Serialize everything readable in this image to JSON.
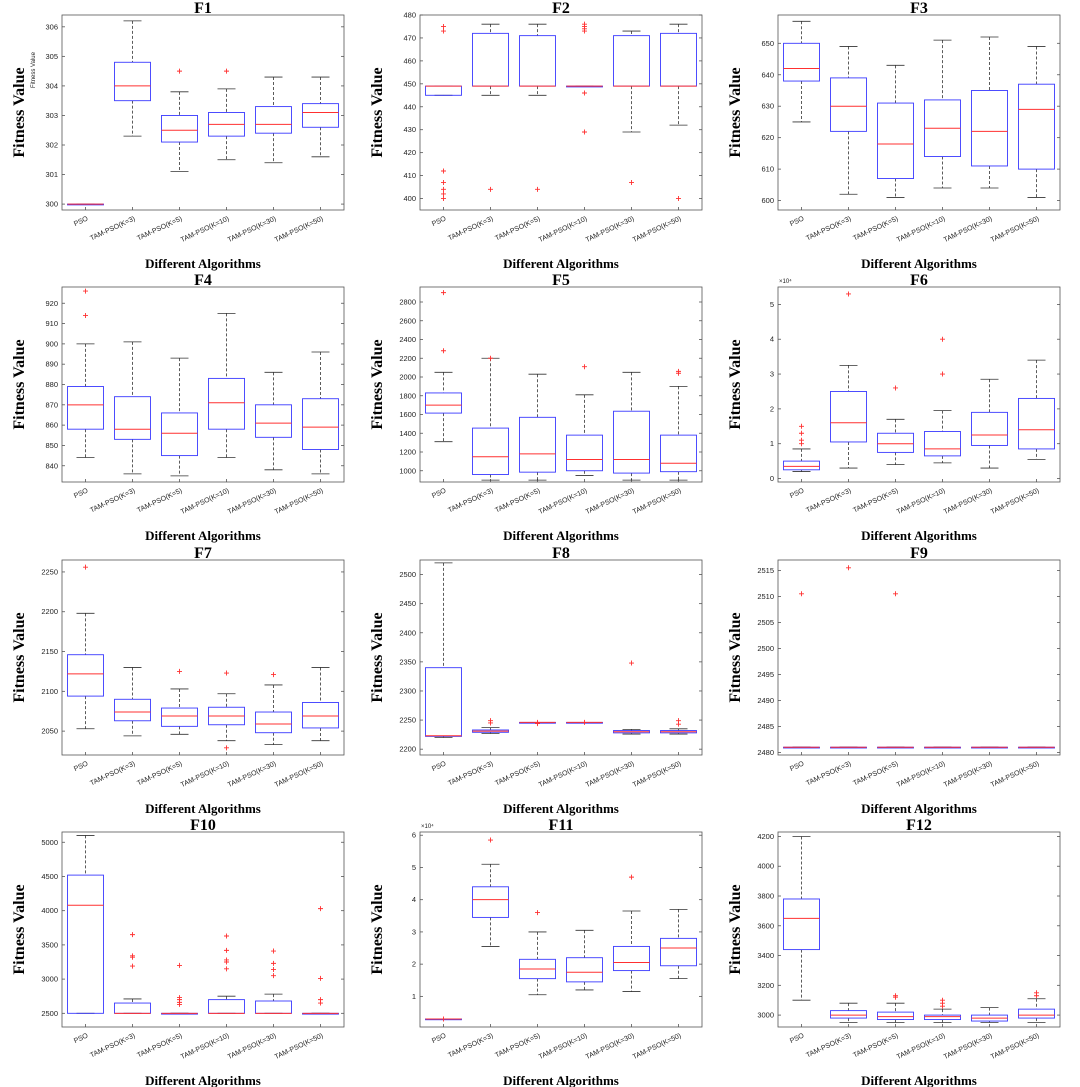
{
  "chart_data": [
    {
      "type": "box",
      "title": "F1",
      "xlabel": "Different Algorithms",
      "ylabel": "Fitness Value",
      "ylabel_small": "Fitness Value",
      "categories": [
        "PSO",
        "TAM-PSO(K=3)",
        "TAM-PSO(K=5)",
        "TAM-PSO(K=10)",
        "TAM-PSO(K=30)",
        "TAM-PSO(K=50)"
      ],
      "ylim": [
        299.8,
        306.4
      ],
      "yticks": [
        300,
        301,
        302,
        303,
        304,
        305,
        306
      ],
      "boxes": [
        {
          "whislo": 300,
          "q1": 300,
          "med": 300,
          "q3": 300,
          "whishi": 300,
          "fliers": []
        },
        {
          "whislo": 302.3,
          "q1": 303.5,
          "med": 304.0,
          "q3": 304.8,
          "whishi": 306.2,
          "fliers": []
        },
        {
          "whislo": 301.1,
          "q1": 302.1,
          "med": 302.5,
          "q3": 303.0,
          "whishi": 303.8,
          "fliers": [
            304.5
          ]
        },
        {
          "whislo": 301.5,
          "q1": 302.3,
          "med": 302.7,
          "q3": 303.1,
          "whishi": 303.9,
          "fliers": [
            304.5
          ]
        },
        {
          "whislo": 301.4,
          "q1": 302.4,
          "med": 302.7,
          "q3": 303.3,
          "whishi": 304.3,
          "fliers": []
        },
        {
          "whislo": 301.6,
          "q1": 302.6,
          "med": 303.1,
          "q3": 303.4,
          "whishi": 304.3,
          "fliers": []
        }
      ]
    },
    {
      "type": "box",
      "title": "F2",
      "xlabel": "Different Algorithms",
      "ylabel": "Fitness Value",
      "categories": [
        "PSO",
        "TAM-PSO(K=3)",
        "TAM-PSO(K=5)",
        "TAM-PSO(K=10)",
        "TAM-PSO(K=30)",
        "TAM-PSO(K=50)"
      ],
      "ylim": [
        395,
        480
      ],
      "yticks": [
        400,
        410,
        420,
        430,
        440,
        450,
        460,
        470,
        480
      ],
      "boxes": [
        {
          "whislo": 445,
          "q1": 445,
          "med": 449,
          "q3": 449,
          "whishi": 449,
          "fliers": [
            400,
            402,
            404,
            407,
            412,
            473,
            475
          ]
        },
        {
          "whislo": 445,
          "q1": 449,
          "med": 449,
          "q3": 472,
          "whishi": 476,
          "fliers": [
            404
          ]
        },
        {
          "whislo": 445,
          "q1": 449,
          "med": 449,
          "q3": 471,
          "whishi": 476,
          "fliers": [
            404
          ]
        },
        {
          "whislo": 449,
          "q1": 449,
          "med": 449,
          "q3": 449,
          "whishi": 449,
          "fliers": [
            429,
            446,
            473,
            474,
            475,
            476
          ]
        },
        {
          "whislo": 429,
          "q1": 449,
          "med": 449,
          "q3": 471,
          "whishi": 473,
          "fliers": [
            407
          ]
        },
        {
          "whislo": 432,
          "q1": 449,
          "med": 449,
          "q3": 472,
          "whishi": 476,
          "fliers": [
            400
          ]
        }
      ]
    },
    {
      "type": "box",
      "title": "F3",
      "xlabel": "Different Algorithms",
      "ylabel": "Fitness Value",
      "categories": [
        "PSO",
        "TAM-PSO(K=3)",
        "TAM-PSO(K=5)",
        "TAM-PSO(K=10)",
        "TAM-PSO(K=30)",
        "TAM-PSO(K=50)"
      ],
      "ylim": [
        597,
        659
      ],
      "yticks": [
        600,
        610,
        620,
        630,
        640,
        650
      ],
      "boxes": [
        {
          "whislo": 625,
          "q1": 638,
          "med": 642,
          "q3": 650,
          "whishi": 657,
          "fliers": []
        },
        {
          "whislo": 602,
          "q1": 622,
          "med": 630,
          "q3": 639,
          "whishi": 649,
          "fliers": []
        },
        {
          "whislo": 601,
          "q1": 607,
          "med": 618,
          "q3": 631,
          "whishi": 643,
          "fliers": []
        },
        {
          "whislo": 604,
          "q1": 614,
          "med": 623,
          "q3": 632,
          "whishi": 651,
          "fliers": []
        },
        {
          "whislo": 604,
          "q1": 611,
          "med": 622,
          "q3": 635,
          "whishi": 652,
          "fliers": []
        },
        {
          "whislo": 601,
          "q1": 610,
          "med": 629,
          "q3": 637,
          "whishi": 649,
          "fliers": []
        }
      ]
    },
    {
      "type": "box",
      "title": "F4",
      "xlabel": "Different Algorithms",
      "ylabel": "Fitness Value",
      "categories": [
        "PSO",
        "TAM-PSO(K=3)",
        "TAM-PSO(K=5)",
        "TAM-PSO(K=10)",
        "TAM-PSO(K=30)",
        "TAM-PSO(K=50)"
      ],
      "ylim": [
        832,
        928
      ],
      "yticks": [
        840,
        850,
        860,
        870,
        880,
        890,
        900,
        910,
        920
      ],
      "boxes": [
        {
          "whislo": 844,
          "q1": 858,
          "med": 870,
          "q3": 879,
          "whishi": 900,
          "fliers": [
            914,
            926
          ]
        },
        {
          "whislo": 836,
          "q1": 853,
          "med": 858,
          "q3": 874,
          "whishi": 901,
          "fliers": []
        },
        {
          "whislo": 835,
          "q1": 845,
          "med": 856,
          "q3": 866,
          "whishi": 893,
          "fliers": []
        },
        {
          "whislo": 844,
          "q1": 858,
          "med": 871,
          "q3": 883,
          "whishi": 915,
          "fliers": []
        },
        {
          "whislo": 838,
          "q1": 854,
          "med": 861,
          "q3": 870,
          "whishi": 886,
          "fliers": []
        },
        {
          "whislo": 836,
          "q1": 848,
          "med": 859,
          "q3": 873,
          "whishi": 896,
          "fliers": []
        }
      ]
    },
    {
      "type": "box",
      "title": "F5",
      "xlabel": "Different Algorithms",
      "ylabel": "Fitness Value",
      "categories": [
        "PSO",
        "TAM-PSO(K=3)",
        "TAM-PSO(K=5)",
        "TAM-PSO(K=10)",
        "TAM-PSO(K=30)",
        "TAM-PSO(K=50)"
      ],
      "ylim": [
        880,
        2960
      ],
      "yticks": [
        1000,
        1200,
        1400,
        1600,
        1800,
        2000,
        2200,
        2400,
        2600,
        2800
      ],
      "boxes": [
        {
          "whislo": 1310,
          "q1": 1615,
          "med": 1700,
          "q3": 1830,
          "whishi": 2050,
          "fliers": [
            2280,
            2900
          ]
        },
        {
          "whislo": 900,
          "q1": 960,
          "med": 1150,
          "q3": 1455,
          "whishi": 2200,
          "fliers": [
            2200
          ]
        },
        {
          "whislo": 900,
          "q1": 985,
          "med": 1180,
          "q3": 1570,
          "whishi": 2030,
          "fliers": []
        },
        {
          "whislo": 950,
          "q1": 1000,
          "med": 1120,
          "q3": 1380,
          "whishi": 1810,
          "fliers": [
            2110
          ]
        },
        {
          "whislo": 900,
          "q1": 975,
          "med": 1120,
          "q3": 1635,
          "whishi": 2050,
          "fliers": []
        },
        {
          "whislo": 900,
          "q1": 990,
          "med": 1080,
          "q3": 1380,
          "whishi": 1900,
          "fliers": [
            2040,
            2060
          ]
        }
      ]
    },
    {
      "type": "box",
      "title": "F6",
      "xlabel": "Different Algorithms",
      "ylabel": "Fitness Value",
      "exponent": "×10⁴",
      "categories": [
        "PSO",
        "TAM-PSO(K=3)",
        "TAM-PSO(K=5)",
        "TAM-PSO(K=10)",
        "TAM-PSO(K=30)",
        "TAM-PSO(K=50)"
      ],
      "ylim": [
        -0.1,
        5.5
      ],
      "yticks": [
        0,
        1,
        2,
        3,
        4,
        5
      ],
      "boxes": [
        {
          "whislo": 0.2,
          "q1": 0.25,
          "med": 0.35,
          "q3": 0.5,
          "whishi": 0.85,
          "fliers": [
            1.0,
            1.1,
            1.3,
            1.5
          ]
        },
        {
          "whislo": 0.3,
          "q1": 1.05,
          "med": 1.6,
          "q3": 2.5,
          "whishi": 3.25,
          "fliers": [
            5.3
          ]
        },
        {
          "whislo": 0.4,
          "q1": 0.75,
          "med": 1.0,
          "q3": 1.3,
          "whishi": 1.7,
          "fliers": [
            2.6
          ]
        },
        {
          "whislo": 0.45,
          "q1": 0.65,
          "med": 0.85,
          "q3": 1.35,
          "whishi": 1.95,
          "fliers": [
            3.0,
            4.0
          ]
        },
        {
          "whislo": 0.3,
          "q1": 0.95,
          "med": 1.25,
          "q3": 1.9,
          "whishi": 2.85,
          "fliers": []
        },
        {
          "whislo": 0.55,
          "q1": 0.85,
          "med": 1.4,
          "q3": 2.3,
          "whishi": 3.4,
          "fliers": []
        }
      ]
    },
    {
      "type": "box",
      "title": "F7",
      "xlabel": "Different Algorithms",
      "ylabel": "Fitness Value",
      "categories": [
        "PSO",
        "TAM-PSO(K=3)",
        "TAM-PSO(K=5)",
        "TAM-PSO(K=10)",
        "TAM-PSO(K=30)",
        "TAM-PSO(K=50)"
      ],
      "ylim": [
        2020,
        2265
      ],
      "yticks": [
        2050,
        2100,
        2150,
        2200,
        2250
      ],
      "boxes": [
        {
          "whislo": 2053,
          "q1": 2094,
          "med": 2122,
          "q3": 2146,
          "whishi": 2198,
          "fliers": [
            2256
          ]
        },
        {
          "whislo": 2044,
          "q1": 2063,
          "med": 2074,
          "q3": 2090,
          "whishi": 2130,
          "fliers": []
        },
        {
          "whislo": 2046,
          "q1": 2056,
          "med": 2069,
          "q3": 2079,
          "whishi": 2103,
          "fliers": [
            2125
          ]
        },
        {
          "whislo": 2038,
          "q1": 2058,
          "med": 2069,
          "q3": 2080,
          "whishi": 2097,
          "fliers": [
            2029,
            2123
          ]
        },
        {
          "whislo": 2033,
          "q1": 2048,
          "med": 2059,
          "q3": 2074,
          "whishi": 2108,
          "fliers": [
            2121
          ]
        },
        {
          "whislo": 2038,
          "q1": 2054,
          "med": 2069,
          "q3": 2086,
          "whishi": 2130,
          "fliers": []
        }
      ]
    },
    {
      "type": "box",
      "title": "F8",
      "xlabel": "Different Algorithms",
      "ylabel": "Fitness Value",
      "categories": [
        "PSO",
        "TAM-PSO(K=3)",
        "TAM-PSO(K=5)",
        "TAM-PSO(K=10)",
        "TAM-PSO(K=30)",
        "TAM-PSO(K=50)"
      ],
      "ylim": [
        2190,
        2525
      ],
      "yticks": [
        2200,
        2250,
        2300,
        2350,
        2400,
        2450,
        2500
      ],
      "boxes": [
        {
          "whislo": 2220,
          "q1": 2222,
          "med": 2223,
          "q3": 2340,
          "whishi": 2520,
          "fliers": []
        },
        {
          "whislo": 2227,
          "q1": 2229,
          "med": 2231,
          "q3": 2233,
          "whishi": 2237,
          "fliers": [
            2245,
            2249
          ]
        },
        {
          "whislo": 2246,
          "q1": 2246,
          "med": 2246,
          "q3": 2246,
          "whishi": 2246,
          "fliers": [
            2244,
            2246
          ]
        },
        {
          "whislo": 2246,
          "q1": 2246,
          "med": 2246,
          "q3": 2246,
          "whishi": 2246,
          "fliers": [
            2246
          ]
        },
        {
          "whislo": 2226,
          "q1": 2228,
          "med": 2230,
          "q3": 2232,
          "whishi": 2234,
          "fliers": [
            2348
          ]
        },
        {
          "whislo": 2226,
          "q1": 2228,
          "med": 2230,
          "q3": 2232,
          "whishi": 2235,
          "fliers": [
            2243,
            2249
          ]
        }
      ]
    },
    {
      "type": "box",
      "title": "F9",
      "xlabel": "Different Algorithms",
      "ylabel": "Fitness Value",
      "categories": [
        "PSO",
        "TAM-PSO(K=3)",
        "TAM-PSO(K=5)",
        "TAM-PSO(K=10)",
        "TAM-PSO(K=30)",
        "TAM-PSO(K=50)"
      ],
      "ylim": [
        2479.5,
        2517
      ],
      "yticks": [
        2480,
        2485,
        2490,
        2495,
        2500,
        2505,
        2510,
        2515
      ],
      "boxes": [
        {
          "whislo": 2481,
          "q1": 2481,
          "med": 2481,
          "q3": 2481,
          "whishi": 2481,
          "fliers": [
            2510.5
          ]
        },
        {
          "whislo": 2481,
          "q1": 2481,
          "med": 2481,
          "q3": 2481,
          "whishi": 2481,
          "fliers": [
            2515.5
          ]
        },
        {
          "whislo": 2481,
          "q1": 2481,
          "med": 2481,
          "q3": 2481,
          "whishi": 2481,
          "fliers": [
            2510.5
          ]
        },
        {
          "whislo": 2481,
          "q1": 2481,
          "med": 2481,
          "q3": 2481,
          "whishi": 2481,
          "fliers": []
        },
        {
          "whislo": 2481,
          "q1": 2481,
          "med": 2481,
          "q3": 2481,
          "whishi": 2481,
          "fliers": []
        },
        {
          "whislo": 2481,
          "q1": 2481,
          "med": 2481,
          "q3": 2481,
          "whishi": 2481,
          "fliers": []
        }
      ]
    },
    {
      "type": "box",
      "title": "F10",
      "xlabel": "Different Algorithms",
      "ylabel": "Fitness Value",
      "categories": [
        "PSO",
        "TAM-PSO(K=3)",
        "TAM-PSO(K=5)",
        "TAM-PSO(K=10)",
        "TAM-PSO(K=30)",
        "TAM-PSO(K=50)"
      ],
      "ylim": [
        2300,
        5150
      ],
      "yticks": [
        2500,
        3000,
        3500,
        4000,
        4500,
        5000
      ],
      "boxes": [
        {
          "whislo": 2500,
          "q1": 2500,
          "med": 4080,
          "q3": 4520,
          "whishi": 5100,
          "fliers": []
        },
        {
          "whislo": 2500,
          "q1": 2500,
          "med": 2500,
          "q3": 2650,
          "whishi": 2710,
          "fliers": [
            3190,
            3320,
            3340,
            3650
          ]
        },
        {
          "whislo": 2500,
          "q1": 2500,
          "med": 2500,
          "q3": 2500,
          "whishi": 2500,
          "fliers": [
            2630,
            2660,
            2700,
            2730,
            3200
          ]
        },
        {
          "whislo": 2500,
          "q1": 2500,
          "med": 2500,
          "q3": 2700,
          "whishi": 2750,
          "fliers": [
            3150,
            3250,
            3280,
            3420,
            3630
          ]
        },
        {
          "whislo": 2500,
          "q1": 2500,
          "med": 2500,
          "q3": 2680,
          "whishi": 2780,
          "fliers": [
            3050,
            3140,
            3230,
            3410
          ]
        },
        {
          "whislo": 2500,
          "q1": 2500,
          "med": 2500,
          "q3": 2500,
          "whishi": 2500,
          "fliers": [
            2650,
            2700,
            3010,
            4030
          ]
        }
      ]
    },
    {
      "type": "box",
      "title": "F11",
      "xlabel": "Different Algorithms",
      "ylabel": "Fitness Value",
      "exponent": "×10⁴",
      "categories": [
        "PSO",
        "TAM-PSO(K=3)",
        "TAM-PSO(K=5)",
        "TAM-PSO(K=10)",
        "TAM-PSO(K=30)",
        "TAM-PSO(K=50)"
      ],
      "ylim": [
        0.05,
        6.1
      ],
      "yticks": [
        1,
        2,
        3,
        4,
        5,
        6
      ],
      "boxes": [
        {
          "whislo": 0.3,
          "q1": 0.3,
          "med": 0.3,
          "q3": 0.3,
          "whishi": 0.3,
          "fliers": [
            0.3
          ]
        },
        {
          "whislo": 2.55,
          "q1": 3.45,
          "med": 4.0,
          "q3": 4.4,
          "whishi": 5.1,
          "fliers": [
            5.85
          ]
        },
        {
          "whislo": 1.05,
          "q1": 1.55,
          "med": 1.85,
          "q3": 2.15,
          "whishi": 3.0,
          "fliers": [
            3.6
          ]
        },
        {
          "whislo": 1.2,
          "q1": 1.45,
          "med": 1.75,
          "q3": 2.2,
          "whishi": 3.05,
          "fliers": []
        },
        {
          "whislo": 1.15,
          "q1": 1.8,
          "med": 2.05,
          "q3": 2.55,
          "whishi": 3.65,
          "fliers": [
            4.7
          ]
        },
        {
          "whislo": 1.55,
          "q1": 1.95,
          "med": 2.5,
          "q3": 2.8,
          "whishi": 3.7,
          "fliers": []
        }
      ]
    },
    {
      "type": "box",
      "title": "F12",
      "xlabel": "Different Algorithms",
      "ylabel": "Fitness Value",
      "categories": [
        "PSO",
        "TAM-PSO(K=3)",
        "TAM-PSO(K=5)",
        "TAM-PSO(K=10)",
        "TAM-PSO(K=30)",
        "TAM-PSO(K=50)"
      ],
      "ylim": [
        2920,
        4230
      ],
      "yticks": [
        3000,
        3200,
        3400,
        3600,
        3800,
        4000,
        4200
      ],
      "boxes": [
        {
          "whislo": 3100,
          "q1": 3440,
          "med": 3650,
          "q3": 3780,
          "whishi": 4200,
          "fliers": []
        },
        {
          "whislo": 2950,
          "q1": 2980,
          "med": 3000,
          "q3": 3030,
          "whishi": 3080,
          "fliers": []
        },
        {
          "whislo": 2950,
          "q1": 2970,
          "med": 2990,
          "q3": 3020,
          "whishi": 3080,
          "fliers": [
            3120,
            3130
          ]
        },
        {
          "whislo": 2950,
          "q1": 2970,
          "med": 2990,
          "q3": 3000,
          "whishi": 3040,
          "fliers": [
            3060,
            3080,
            3100
          ]
        },
        {
          "whislo": 2950,
          "q1": 2960,
          "med": 2980,
          "q3": 3000,
          "whishi": 3050,
          "fliers": []
        },
        {
          "whislo": 2950,
          "q1": 2980,
          "med": 3000,
          "q3": 3040,
          "whishi": 3110,
          "fliers": [
            3130,
            3150
          ]
        }
      ]
    }
  ]
}
